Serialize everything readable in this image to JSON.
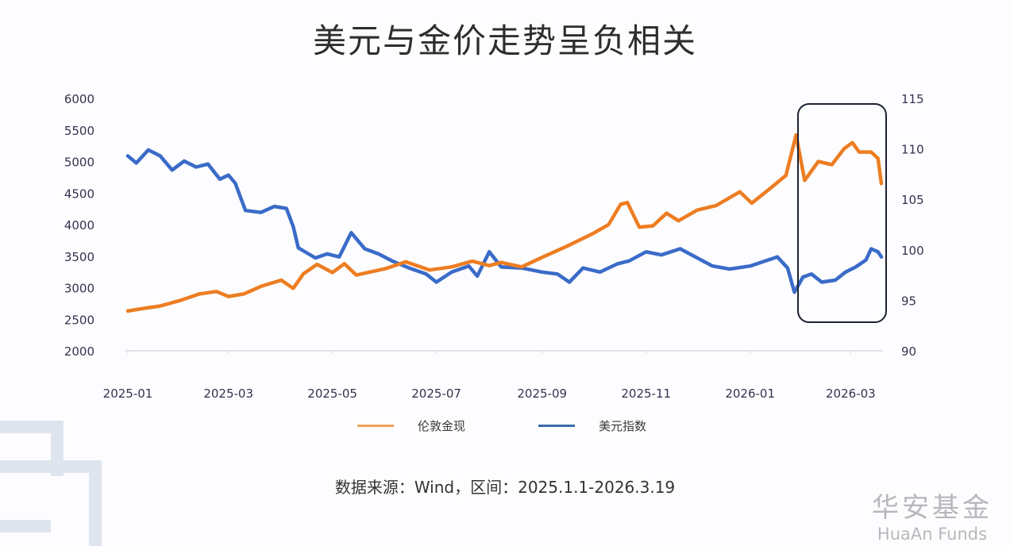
{
  "chart_data": {
    "type": "line",
    "title": "美元与金价走势呈负相关",
    "x_ticks": [
      "2025-01",
      "2025-03",
      "2025-05",
      "2025-07",
      "2025-09",
      "2025-11",
      "2026-01",
      "2026-03"
    ],
    "x_range": [
      "2025-01-01",
      "2026-03-19"
    ],
    "y_left": {
      "ticks": [
        2000,
        2500,
        3000,
        3500,
        4000,
        4500,
        5000,
        5500,
        6000
      ],
      "range": [
        2000,
        6000
      ]
    },
    "y_right": {
      "ticks": [
        90,
        95,
        100,
        105,
        110,
        115
      ],
      "range": [
        90,
        115
      ]
    },
    "grid": false,
    "legend_position": "bottom",
    "series": [
      {
        "name": "伦敦金现",
        "axis": "left",
        "color": "#ED7D22",
        "points": [
          [
            "2025-01-01",
            2630
          ],
          [
            "2025-01-10",
            2670
          ],
          [
            "2025-01-20",
            2710
          ],
          [
            "2025-02-01",
            2800
          ],
          [
            "2025-02-12",
            2900
          ],
          [
            "2025-02-22",
            2940
          ],
          [
            "2025-03-01",
            2860
          ],
          [
            "2025-03-10",
            2900
          ],
          [
            "2025-03-20",
            3020
          ],
          [
            "2025-04-01",
            3120
          ],
          [
            "2025-04-08",
            2990
          ],
          [
            "2025-04-14",
            3220
          ],
          [
            "2025-04-22",
            3370
          ],
          [
            "2025-05-01",
            3240
          ],
          [
            "2025-05-08",
            3380
          ],
          [
            "2025-05-15",
            3200
          ],
          [
            "2025-06-01",
            3300
          ],
          [
            "2025-06-13",
            3410
          ],
          [
            "2025-06-27",
            3280
          ],
          [
            "2025-07-10",
            3330
          ],
          [
            "2025-07-22",
            3420
          ],
          [
            "2025-08-01",
            3350
          ],
          [
            "2025-08-08",
            3400
          ],
          [
            "2025-08-20",
            3330
          ],
          [
            "2025-09-01",
            3480
          ],
          [
            "2025-09-15",
            3650
          ],
          [
            "2025-10-01",
            3860
          ],
          [
            "2025-10-10",
            4000
          ],
          [
            "2025-10-17",
            4320
          ],
          [
            "2025-10-21",
            4350
          ],
          [
            "2025-10-28",
            3960
          ],
          [
            "2025-11-05",
            3980
          ],
          [
            "2025-11-13",
            4180
          ],
          [
            "2025-11-20",
            4060
          ],
          [
            "2025-12-01",
            4230
          ],
          [
            "2025-12-12",
            4300
          ],
          [
            "2025-12-26",
            4520
          ],
          [
            "2026-01-02",
            4340
          ],
          [
            "2026-01-14",
            4600
          ],
          [
            "2026-01-22",
            4780
          ],
          [
            "2026-01-28",
            5420
          ],
          [
            "2026-02-02",
            4700
          ],
          [
            "2026-02-10",
            5000
          ],
          [
            "2026-02-18",
            4950
          ],
          [
            "2026-02-25",
            5200
          ],
          [
            "2026-03-02",
            5300
          ],
          [
            "2026-03-06",
            5150
          ],
          [
            "2026-03-13",
            5150
          ],
          [
            "2026-03-17",
            5050
          ],
          [
            "2026-03-19",
            4650
          ]
        ]
      },
      {
        "name": "美元指数",
        "axis": "right",
        "color": "#3A6BC8",
        "points": [
          [
            "2025-01-01",
            109.3
          ],
          [
            "2025-01-06",
            108.6
          ],
          [
            "2025-01-13",
            109.9
          ],
          [
            "2025-01-20",
            109.3
          ],
          [
            "2025-01-27",
            107.9
          ],
          [
            "2025-02-03",
            108.8
          ],
          [
            "2025-02-10",
            108.2
          ],
          [
            "2025-02-17",
            108.5
          ],
          [
            "2025-02-24",
            107.0
          ],
          [
            "2025-03-01",
            107.4
          ],
          [
            "2025-03-05",
            106.6
          ],
          [
            "2025-03-11",
            103.9
          ],
          [
            "2025-03-20",
            103.7
          ],
          [
            "2025-03-28",
            104.3
          ],
          [
            "2025-04-04",
            104.1
          ],
          [
            "2025-04-08",
            102.3
          ],
          [
            "2025-04-11",
            100.2
          ],
          [
            "2025-04-21",
            99.2
          ],
          [
            "2025-04-28",
            99.6
          ],
          [
            "2025-05-05",
            99.3
          ],
          [
            "2025-05-12",
            101.7
          ],
          [
            "2025-05-20",
            100.1
          ],
          [
            "2025-05-28",
            99.6
          ],
          [
            "2025-06-05",
            98.9
          ],
          [
            "2025-06-15",
            98.2
          ],
          [
            "2025-06-25",
            97.6
          ],
          [
            "2025-07-01",
            96.8
          ],
          [
            "2025-07-10",
            97.8
          ],
          [
            "2025-07-20",
            98.4
          ],
          [
            "2025-07-25",
            97.4
          ],
          [
            "2025-08-01",
            99.8
          ],
          [
            "2025-08-08",
            98.3
          ],
          [
            "2025-08-20",
            98.2
          ],
          [
            "2025-09-01",
            97.8
          ],
          [
            "2025-09-10",
            97.6
          ],
          [
            "2025-09-17",
            96.8
          ],
          [
            "2025-09-25",
            98.2
          ],
          [
            "2025-10-05",
            97.8
          ],
          [
            "2025-10-15",
            98.6
          ],
          [
            "2025-10-22",
            98.9
          ],
          [
            "2025-11-01",
            99.8
          ],
          [
            "2025-11-10",
            99.5
          ],
          [
            "2025-11-21",
            100.1
          ],
          [
            "2025-12-01",
            99.2
          ],
          [
            "2025-12-10",
            98.4
          ],
          [
            "2025-12-20",
            98.1
          ],
          [
            "2026-01-01",
            98.4
          ],
          [
            "2026-01-10",
            98.9
          ],
          [
            "2026-01-17",
            99.3
          ],
          [
            "2026-01-23",
            98.2
          ],
          [
            "2026-01-27",
            95.8
          ],
          [
            "2026-02-01",
            97.3
          ],
          [
            "2026-02-06",
            97.6
          ],
          [
            "2026-02-12",
            96.8
          ],
          [
            "2026-02-20",
            97.0
          ],
          [
            "2026-02-26",
            97.8
          ],
          [
            "2026-03-04",
            98.3
          ],
          [
            "2026-03-10",
            99.0
          ],
          [
            "2026-03-13",
            100.1
          ],
          [
            "2026-03-17",
            99.8
          ],
          [
            "2026-03-19",
            99.3
          ]
        ]
      }
    ],
    "annotation": "highlight box 2026-02 to 2026-03"
  },
  "source": "数据来源：Wind，区间：2025.1.1-2026.3.19",
  "logo": {
    "cn": "华安基金",
    "en": "HuaAn Funds"
  }
}
